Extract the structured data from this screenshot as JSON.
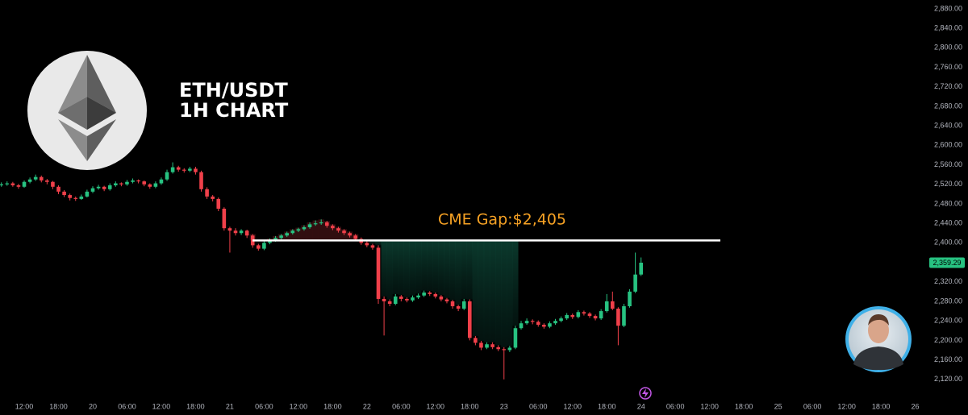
{
  "chart_data": {
    "type": "candlestick",
    "title": "ETH/USDT",
    "subtitle": "1H CHART",
    "annotation": {
      "text": "CME Gap:$2,405",
      "value": 2405
    },
    "last_price": {
      "value": 2359.29,
      "label": "2,359.29"
    },
    "up_color": "#27c281",
    "down_color": "#f0404a",
    "grid": false,
    "ylim": [
      2080,
      2898
    ],
    "yticks": [
      {
        "value": 2120,
        "label": "2,120.00"
      },
      {
        "value": 2160,
        "label": "2,160.00"
      },
      {
        "value": 2200,
        "label": "2,200.00"
      },
      {
        "value": 2240,
        "label": "2,240.00"
      },
      {
        "value": 2280,
        "label": "2,280.00"
      },
      {
        "value": 2320,
        "label": "2,320.00"
      },
      {
        "value": 2360,
        "label": "2,360.00"
      },
      {
        "value": 2400,
        "label": "2,400.00"
      },
      {
        "value": 2440,
        "label": "2,440.00"
      },
      {
        "value": 2480,
        "label": "2,480.00"
      },
      {
        "value": 2520,
        "label": "2,520.00"
      },
      {
        "value": 2560,
        "label": "2,560.00"
      },
      {
        "value": 2600,
        "label": "2,600.00"
      },
      {
        "value": 2640,
        "label": "2,640.00"
      },
      {
        "value": 2680,
        "label": "2,680.00"
      },
      {
        "value": 2720,
        "label": "2,720.00"
      },
      {
        "value": 2760,
        "label": "2,760.00"
      },
      {
        "value": 2800,
        "label": "2,800.00"
      },
      {
        "value": 2840,
        "label": "2,840.00"
      },
      {
        "value": 2880,
        "label": "2,880.00"
      }
    ],
    "xlim": [
      -0.24,
      161.05
    ],
    "xticks": [
      {
        "value": 4,
        "label": "12:00"
      },
      {
        "value": 10,
        "label": "18:00"
      },
      {
        "value": 16,
        "label": "20"
      },
      {
        "value": 22,
        "label": "06:00"
      },
      {
        "value": 28,
        "label": "12:00"
      },
      {
        "value": 34,
        "label": "18:00"
      },
      {
        "value": 40,
        "label": "21"
      },
      {
        "value": 46,
        "label": "06:00"
      },
      {
        "value": 52,
        "label": "12:00"
      },
      {
        "value": 58,
        "label": "18:00"
      },
      {
        "value": 64,
        "label": "22"
      },
      {
        "value": 70,
        "label": "06:00"
      },
      {
        "value": 76,
        "label": "12:00"
      },
      {
        "value": 82,
        "label": "18:00"
      },
      {
        "value": 88,
        "label": "23"
      },
      {
        "value": 94,
        "label": "06:00"
      },
      {
        "value": 100,
        "label": "12:00"
      },
      {
        "value": 106,
        "label": "18:00"
      },
      {
        "value": 112,
        "label": "24"
      },
      {
        "value": 118,
        "label": "06:00"
      },
      {
        "value": 124,
        "label": "12:00"
      },
      {
        "value": 130,
        "label": "18:00"
      },
      {
        "value": 136,
        "label": "25"
      },
      {
        "value": 142,
        "label": "06:00"
      },
      {
        "value": 148,
        "label": "12:00"
      },
      {
        "value": 154,
        "label": "18:00"
      },
      {
        "value": 160,
        "label": "26"
      }
    ],
    "candles": [
      [
        2518,
        2524,
        2515,
        2520
      ],
      [
        2520,
        2526,
        2517,
        2522
      ],
      [
        2522,
        2525,
        2515,
        2518
      ],
      [
        2518,
        2521,
        2511,
        2515
      ],
      [
        2515,
        2528,
        2513,
        2525
      ],
      [
        2525,
        2534,
        2522,
        2530
      ],
      [
        2530,
        2540,
        2527,
        2535
      ],
      [
        2535,
        2538,
        2524,
        2528
      ],
      [
        2528,
        2531,
        2520,
        2525
      ],
      [
        2525,
        2527,
        2510,
        2515
      ],
      [
        2515,
        2518,
        2500,
        2505
      ],
      [
        2505,
        2508,
        2494,
        2498
      ],
      [
        2498,
        2501,
        2487,
        2492
      ],
      [
        2492,
        2495,
        2486,
        2490
      ],
      [
        2490,
        2499,
        2488,
        2495
      ],
      [
        2495,
        2509,
        2493,
        2505
      ],
      [
        2505,
        2516,
        2502,
        2512
      ],
      [
        2512,
        2519,
        2509,
        2515
      ],
      [
        2515,
        2517,
        2506,
        2510
      ],
      [
        2510,
        2522,
        2507,
        2518
      ],
      [
        2518,
        2526,
        2515,
        2522
      ],
      [
        2522,
        2524,
        2516,
        2520
      ],
      [
        2520,
        2529,
        2517,
        2525
      ],
      [
        2525,
        2532,
        2522,
        2528
      ],
      [
        2528,
        2530,
        2522,
        2526
      ],
      [
        2526,
        2528,
        2516,
        2520
      ],
      [
        2520,
        2522,
        2511,
        2515
      ],
      [
        2515,
        2526,
        2512,
        2522
      ],
      [
        2522,
        2534,
        2519,
        2530
      ],
      [
        2530,
        2550,
        2527,
        2545
      ],
      [
        2545,
        2565,
        2542,
        2555
      ],
      [
        2555,
        2558,
        2546,
        2550
      ],
      [
        2550,
        2553,
        2544,
        2548
      ],
      [
        2548,
        2556,
        2545,
        2552
      ],
      [
        2552,
        2556,
        2540,
        2545
      ],
      [
        2545,
        2548,
        2505,
        2510
      ],
      [
        2510,
        2514,
        2490,
        2495
      ],
      [
        2495,
        2498,
        2485,
        2490
      ],
      [
        2490,
        2493,
        2465,
        2470
      ],
      [
        2470,
        2473,
        2425,
        2430
      ],
      [
        2430,
        2433,
        2380,
        2425
      ],
      [
        2425,
        2430,
        2415,
        2420
      ],
      [
        2420,
        2428,
        2416,
        2425
      ],
      [
        2425,
        2427,
        2410,
        2415
      ],
      [
        2415,
        2418,
        2390,
        2395
      ],
      [
        2395,
        2398,
        2384,
        2388
      ],
      [
        2388,
        2404,
        2385,
        2400
      ],
      [
        2400,
        2409,
        2397,
        2405
      ],
      [
        2405,
        2414,
        2402,
        2410
      ],
      [
        2410,
        2418,
        2407,
        2415
      ],
      [
        2415,
        2423,
        2412,
        2420
      ],
      [
        2420,
        2428,
        2417,
        2425
      ],
      [
        2425,
        2431,
        2422,
        2428
      ],
      [
        2428,
        2436,
        2425,
        2432
      ],
      [
        2432,
        2442,
        2429,
        2438
      ],
      [
        2438,
        2446,
        2435,
        2440
      ],
      [
        2440,
        2448,
        2437,
        2442
      ],
      [
        2442,
        2445,
        2431,
        2435
      ],
      [
        2435,
        2438,
        2426,
        2430
      ],
      [
        2430,
        2433,
        2421,
        2425
      ],
      [
        2425,
        2428,
        2416,
        2420
      ],
      [
        2420,
        2423,
        2411,
        2415
      ],
      [
        2415,
        2418,
        2404,
        2408
      ],
      [
        2408,
        2411,
        2396,
        2400
      ],
      [
        2400,
        2405,
        2391,
        2395
      ],
      [
        2395,
        2398,
        2386,
        2390
      ],
      [
        2390,
        2395,
        2275,
        2285
      ],
      [
        2285,
        2290,
        2210,
        2280
      ],
      [
        2280,
        2284,
        2270,
        2275
      ],
      [
        2275,
        2295,
        2272,
        2290
      ],
      [
        2290,
        2293,
        2280,
        2285
      ],
      [
        2285,
        2288,
        2278,
        2282
      ],
      [
        2282,
        2292,
        2279,
        2288
      ],
      [
        2288,
        2296,
        2285,
        2292
      ],
      [
        2292,
        2302,
        2289,
        2298
      ],
      [
        2298,
        2301,
        2291,
        2295
      ],
      [
        2295,
        2298,
        2286,
        2290
      ],
      [
        2290,
        2293,
        2280,
        2284
      ],
      [
        2284,
        2287,
        2276,
        2280
      ],
      [
        2280,
        2283,
        2265,
        2270
      ],
      [
        2270,
        2273,
        2260,
        2265
      ],
      [
        2265,
        2285,
        2262,
        2280
      ],
      [
        2280,
        2284,
        2200,
        2205
      ],
      [
        2205,
        2209,
        2190,
        2195
      ],
      [
        2195,
        2199,
        2180,
        2185
      ],
      [
        2185,
        2196,
        2182,
        2192
      ],
      [
        2192,
        2196,
        2182,
        2186
      ],
      [
        2186,
        2190,
        2178,
        2182
      ],
      [
        2182,
        2186,
        2120,
        2180
      ],
      [
        2180,
        2189,
        2176,
        2185
      ],
      [
        2185,
        2230,
        2182,
        2225
      ],
      [
        2225,
        2240,
        2222,
        2235
      ],
      [
        2235,
        2245,
        2232,
        2240
      ],
      [
        2240,
        2243,
        2233,
        2238
      ],
      [
        2238,
        2241,
        2228,
        2232
      ],
      [
        2232,
        2235,
        2224,
        2228
      ],
      [
        2228,
        2239,
        2225,
        2235
      ],
      [
        2235,
        2244,
        2232,
        2240
      ],
      [
        2240,
        2249,
        2237,
        2245
      ],
      [
        2245,
        2256,
        2242,
        2252
      ],
      [
        2252,
        2255,
        2244,
        2248
      ],
      [
        2248,
        2262,
        2245,
        2258
      ],
      [
        2258,
        2261,
        2251,
        2255
      ],
      [
        2255,
        2258,
        2246,
        2250
      ],
      [
        2250,
        2253,
        2241,
        2245
      ],
      [
        2245,
        2264,
        2242,
        2260
      ],
      [
        2260,
        2295,
        2257,
        2280
      ],
      [
        2280,
        2300,
        2262,
        2265
      ],
      [
        2265,
        2268,
        2190,
        2230
      ],
      [
        2230,
        2275,
        2227,
        2270
      ],
      [
        2270,
        2305,
        2267,
        2300
      ],
      [
        2300,
        2380,
        2297,
        2335
      ],
      [
        2335,
        2370,
        2332,
        2359.29
      ]
    ]
  }
}
